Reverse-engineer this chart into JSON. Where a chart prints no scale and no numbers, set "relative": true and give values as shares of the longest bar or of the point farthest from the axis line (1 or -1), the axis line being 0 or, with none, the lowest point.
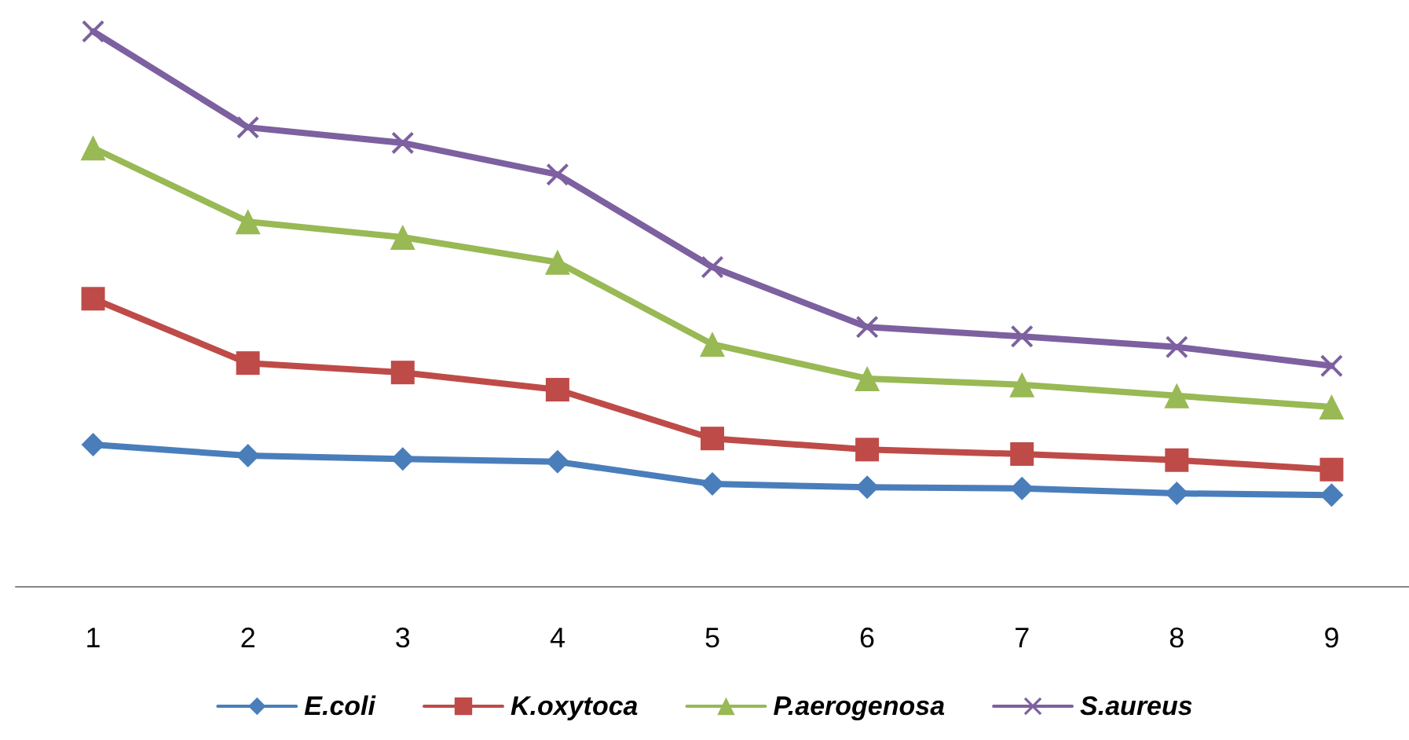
{
  "chart_data": {
    "type": "line",
    "relative": true,
    "categories": [
      "1",
      "2",
      "3",
      "4",
      "5",
      "6",
      "7",
      "8",
      "9"
    ],
    "legend": "bottom",
    "grid": false,
    "series": [
      {
        "name": "E.coli",
        "color": "#4a7ebb",
        "marker": "diamond",
        "values": [
          0.255,
          0.235,
          0.229,
          0.224,
          0.184,
          0.178,
          0.176,
          0.167,
          0.164
        ]
      },
      {
        "name": "K.oxytoca",
        "color": "#be4b48",
        "marker": "square",
        "values": [
          0.518,
          0.402,
          0.385,
          0.354,
          0.266,
          0.246,
          0.238,
          0.227,
          0.21
        ]
      },
      {
        "name": "P.aerogenosa",
        "color": "#98b954",
        "marker": "triangle",
        "values": [
          0.79,
          0.657,
          0.629,
          0.584,
          0.436,
          0.374,
          0.363,
          0.343,
          0.323
        ]
      },
      {
        "name": "S.aureus",
        "color": "#7d60a0",
        "marker": "cross",
        "values": [
          1,
          0.827,
          0.799,
          0.742,
          0.575,
          0.467,
          0.45,
          0.431,
          0.397
        ]
      }
    ]
  }
}
